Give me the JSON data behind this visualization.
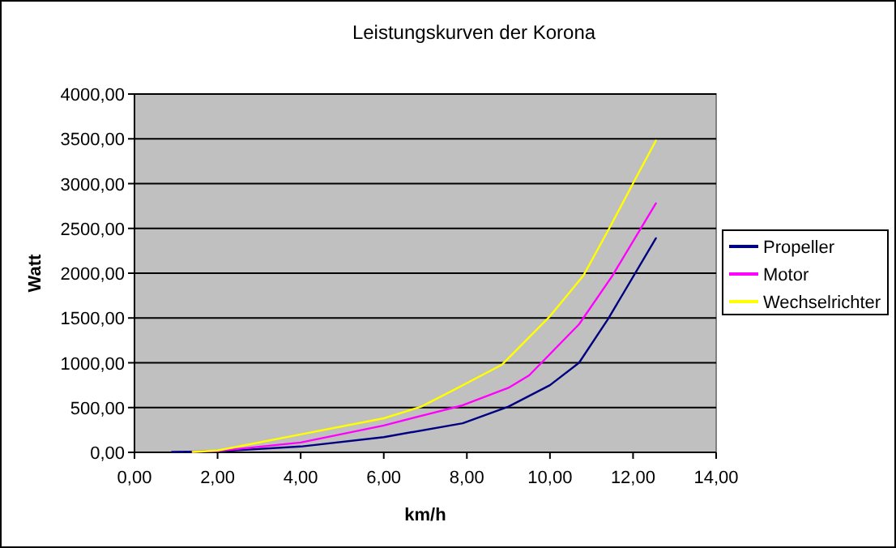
{
  "chart_data": {
    "type": "line",
    "title": "Leistungskurven der Korona",
    "xlabel": "km/h",
    "ylabel": "Watt",
    "xlim": [
      0,
      14
    ],
    "xticks": [
      {
        "value": 0,
        "label": "0,00"
      },
      {
        "value": 2,
        "label": "2,00"
      },
      {
        "value": 4,
        "label": "4,00"
      },
      {
        "value": 6,
        "label": "6,00"
      },
      {
        "value": 8,
        "label": "8,00"
      },
      {
        "value": 10,
        "label": "10,00"
      },
      {
        "value": 12,
        "label": "12,00"
      },
      {
        "value": 14,
        "label": "14,00"
      }
    ],
    "ylim": [
      0,
      4000
    ],
    "yticks": [
      {
        "value": 0,
        "label": "0,00"
      },
      {
        "value": 500,
        "label": "500,00"
      },
      {
        "value": 1000,
        "label": "1000,00"
      },
      {
        "value": 1500,
        "label": "1500,00"
      },
      {
        "value": 2000,
        "label": "2000,00"
      },
      {
        "value": 2500,
        "label": "2500,00"
      },
      {
        "value": 3000,
        "label": "3000,00"
      },
      {
        "value": 3500,
        "label": "3500,00"
      },
      {
        "value": 4000,
        "label": "4000,00"
      }
    ],
    "grid": "y",
    "legend": "right",
    "marker": "none",
    "line_style": "solid",
    "series": [
      {
        "name": "Propeller",
        "color": "#000080",
        "x": [
          0.9,
          2,
          4,
          6,
          7.9,
          9,
          10,
          10.7,
          11.4,
          12.55
        ],
        "values": [
          5,
          10,
          65,
          170,
          325,
          510,
          750,
          1000,
          1490,
          2390
        ]
      },
      {
        "name": "Motor",
        "color": "#ff00ff",
        "x": [
          1.4,
          2,
          4,
          6,
          7.9,
          9,
          9.5,
          10.7,
          11.5,
          12.55
        ],
        "values": [
          5,
          15,
          110,
          300,
          525,
          720,
          860,
          1430,
          1970,
          2780
        ]
      },
      {
        "name": "Wechselrichter",
        "color": "#ffff00",
        "x": [
          1.4,
          2,
          4,
          6,
          6.9,
          7.7,
          8.85,
          10,
          10.8,
          11.45,
          12.1,
          12.55
        ],
        "values": [
          5,
          20,
          200,
          380,
          510,
          700,
          980,
          1520,
          1970,
          2520,
          3090,
          3480
        ]
      }
    ]
  }
}
